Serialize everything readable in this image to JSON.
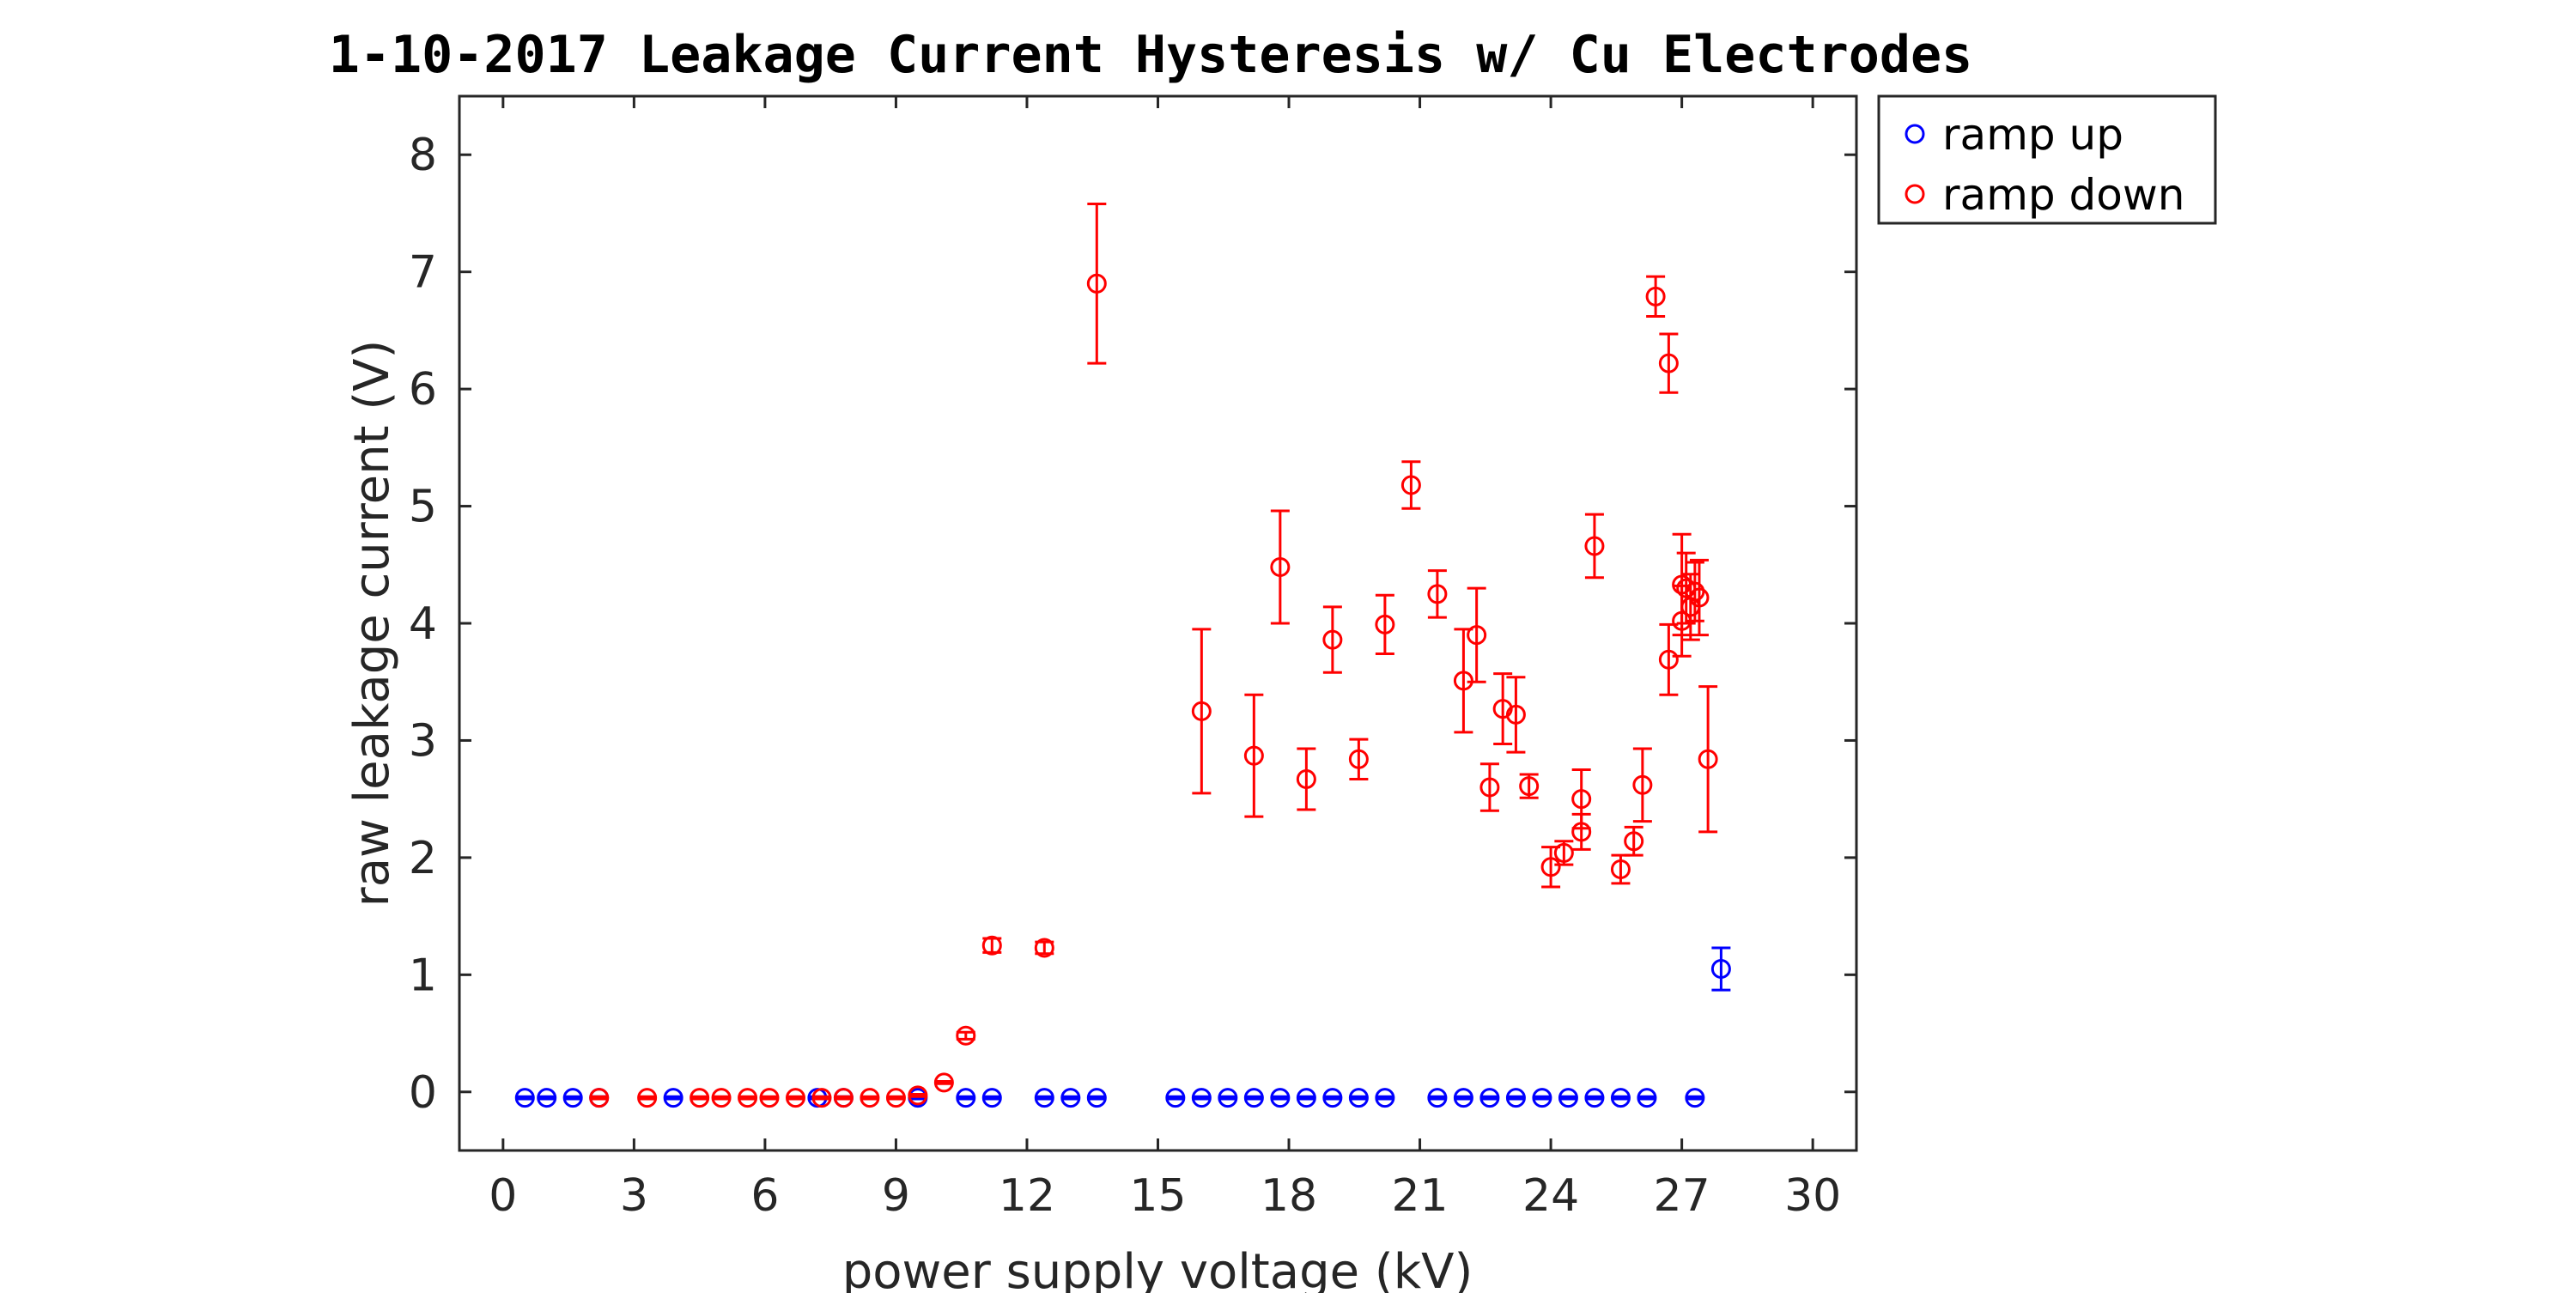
{
  "chart_data": {
    "type": "scatter",
    "title": "1-10-2017 Leakage Current Hysteresis w/ Cu Electrodes",
    "xlabel": "power supply voltage (kV)",
    "ylabel": "raw leakage current (V)",
    "xlim": [
      -1,
      31
    ],
    "ylim": [
      -0.5,
      8.5
    ],
    "xticks": [
      0,
      3,
      6,
      9,
      12,
      15,
      18,
      21,
      24,
      27,
      30
    ],
    "yticks": [
      0,
      1,
      2,
      3,
      4,
      5,
      6,
      7,
      8
    ],
    "grid": false,
    "legend_position": "outside-top-right",
    "series": [
      {
        "name": "ramp up",
        "color": "#0000ff",
        "marker": "circle",
        "points": [
          {
            "x": 0.5,
            "y": -0.05,
            "err": 0.01
          },
          {
            "x": 1.0,
            "y": -0.05,
            "err": 0.01
          },
          {
            "x": 1.6,
            "y": -0.05,
            "err": 0.01
          },
          {
            "x": 2.2,
            "y": -0.05,
            "err": 0.01
          },
          {
            "x": 3.9,
            "y": -0.05,
            "err": 0.01
          },
          {
            "x": 7.2,
            "y": -0.05,
            "err": 0.01
          },
          {
            "x": 7.8,
            "y": -0.05,
            "err": 0.01
          },
          {
            "x": 9.5,
            "y": -0.05,
            "err": 0.01
          },
          {
            "x": 10.6,
            "y": -0.05,
            "err": 0.01
          },
          {
            "x": 11.2,
            "y": -0.05,
            "err": 0.01
          },
          {
            "x": 12.4,
            "y": -0.05,
            "err": 0.01
          },
          {
            "x": 13.0,
            "y": -0.05,
            "err": 0.01
          },
          {
            "x": 13.6,
            "y": -0.05,
            "err": 0.01
          },
          {
            "x": 15.4,
            "y": -0.05,
            "err": 0.01
          },
          {
            "x": 16.0,
            "y": -0.05,
            "err": 0.01
          },
          {
            "x": 16.6,
            "y": -0.05,
            "err": 0.01
          },
          {
            "x": 17.2,
            "y": -0.05,
            "err": 0.01
          },
          {
            "x": 17.8,
            "y": -0.05,
            "err": 0.01
          },
          {
            "x": 18.4,
            "y": -0.05,
            "err": 0.01
          },
          {
            "x": 19.0,
            "y": -0.05,
            "err": 0.01
          },
          {
            "x": 19.6,
            "y": -0.05,
            "err": 0.01
          },
          {
            "x": 20.2,
            "y": -0.05,
            "err": 0.01
          },
          {
            "x": 21.4,
            "y": -0.05,
            "err": 0.01
          },
          {
            "x": 22.0,
            "y": -0.05,
            "err": 0.01
          },
          {
            "x": 22.6,
            "y": -0.05,
            "err": 0.01
          },
          {
            "x": 23.2,
            "y": -0.05,
            "err": 0.01
          },
          {
            "x": 23.8,
            "y": -0.05,
            "err": 0.01
          },
          {
            "x": 24.4,
            "y": -0.05,
            "err": 0.01
          },
          {
            "x": 25.0,
            "y": -0.05,
            "err": 0.01
          },
          {
            "x": 25.6,
            "y": -0.05,
            "err": 0.01
          },
          {
            "x": 26.2,
            "y": -0.05,
            "err": 0.01
          },
          {
            "x": 27.3,
            "y": -0.05,
            "err": 0.01
          },
          {
            "x": 27.9,
            "y": 1.05,
            "err": 0.18
          }
        ]
      },
      {
        "name": "ramp down",
        "color": "#ff0000",
        "marker": "circle",
        "points": [
          {
            "x": 2.2,
            "y": -0.05,
            "err": 0.01
          },
          {
            "x": 3.3,
            "y": -0.05,
            "err": 0.01
          },
          {
            "x": 4.5,
            "y": -0.05,
            "err": 0.01
          },
          {
            "x": 5.0,
            "y": -0.05,
            "err": 0.01
          },
          {
            "x": 5.6,
            "y": -0.05,
            "err": 0.01
          },
          {
            "x": 6.1,
            "y": -0.05,
            "err": 0.01
          },
          {
            "x": 6.7,
            "y": -0.05,
            "err": 0.01
          },
          {
            "x": 7.3,
            "y": -0.05,
            "err": 0.01
          },
          {
            "x": 7.8,
            "y": -0.05,
            "err": 0.01
          },
          {
            "x": 8.4,
            "y": -0.05,
            "err": 0.01
          },
          {
            "x": 9.0,
            "y": -0.05,
            "err": 0.01
          },
          {
            "x": 9.5,
            "y": -0.03,
            "err": 0.01
          },
          {
            "x": 10.1,
            "y": 0.08,
            "err": 0.01
          },
          {
            "x": 10.6,
            "y": 0.48,
            "err": 0.03
          },
          {
            "x": 11.2,
            "y": 1.25,
            "err": 0.06
          },
          {
            "x": 12.4,
            "y": 1.23,
            "err": 0.05
          },
          {
            "x": 13.6,
            "y": 6.9,
            "err": 0.68
          },
          {
            "x": 16.0,
            "y": 3.25,
            "err": 0.7
          },
          {
            "x": 17.2,
            "y": 2.87,
            "err": 0.52
          },
          {
            "x": 17.8,
            "y": 4.48,
            "err": 0.48
          },
          {
            "x": 18.4,
            "y": 2.67,
            "err": 0.26
          },
          {
            "x": 19.0,
            "y": 3.86,
            "err": 0.28
          },
          {
            "x": 19.6,
            "y": 2.84,
            "err": 0.17
          },
          {
            "x": 20.2,
            "y": 3.99,
            "err": 0.25
          },
          {
            "x": 20.8,
            "y": 5.18,
            "err": 0.2
          },
          {
            "x": 21.4,
            "y": 4.25,
            "err": 0.2
          },
          {
            "x": 22.0,
            "y": 3.51,
            "err": 0.44
          },
          {
            "x": 22.3,
            "y": 3.9,
            "err": 0.4
          },
          {
            "x": 22.6,
            "y": 2.6,
            "err": 0.2
          },
          {
            "x": 22.9,
            "y": 3.27,
            "err": 0.3
          },
          {
            "x": 23.2,
            "y": 3.22,
            "err": 0.32
          },
          {
            "x": 23.5,
            "y": 2.61,
            "err": 0.1
          },
          {
            "x": 24.0,
            "y": 1.92,
            "err": 0.17
          },
          {
            "x": 24.3,
            "y": 2.04,
            "err": 0.1
          },
          {
            "x": 24.7,
            "y": 2.22,
            "err": 0.15
          },
          {
            "x": 24.7,
            "y": 2.5,
            "err": 0.25
          },
          {
            "x": 25.0,
            "y": 4.66,
            "err": 0.27
          },
          {
            "x": 25.6,
            "y": 1.9,
            "err": 0.12
          },
          {
            "x": 25.9,
            "y": 2.14,
            "err": 0.12
          },
          {
            "x": 26.1,
            "y": 2.62,
            "err": 0.31
          },
          {
            "x": 26.4,
            "y": 6.79,
            "err": 0.17
          },
          {
            "x": 26.7,
            "y": 6.22,
            "err": 0.25
          },
          {
            "x": 26.7,
            "y": 3.69,
            "err": 0.3
          },
          {
            "x": 27.0,
            "y": 4.33,
            "err": 0.43
          },
          {
            "x": 27.0,
            "y": 4.02,
            "err": 0.3
          },
          {
            "x": 27.1,
            "y": 4.3,
            "err": 0.3
          },
          {
            "x": 27.2,
            "y": 4.14,
            "err": 0.28
          },
          {
            "x": 27.3,
            "y": 4.27,
            "err": 0.25
          },
          {
            "x": 27.4,
            "y": 4.22,
            "err": 0.32
          },
          {
            "x": 27.6,
            "y": 2.84,
            "err": 0.62
          }
        ]
      }
    ]
  }
}
